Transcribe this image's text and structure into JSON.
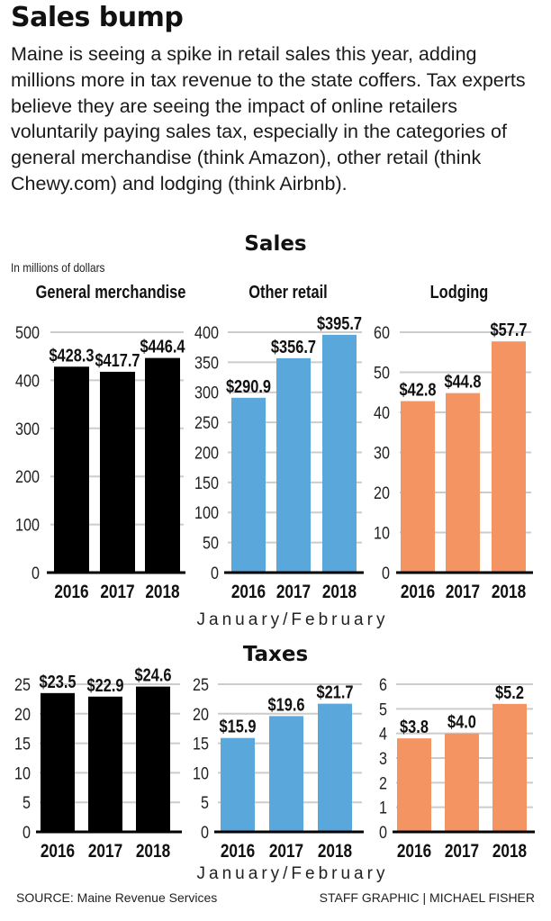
{
  "header": {
    "title": "Sales bump",
    "description": "Maine is seeing a spike in retail sales this year, adding millions more in tax revenue to the state coffers. Tax experts believe they are seeing the impact of online retailers voluntarily paying sales tax, especially in the categories of general merchandise (think Amazon), other retail (think Chewy.com) and lodging (think Airbnb)."
  },
  "sections": {
    "sales_title": "Sales",
    "taxes_title": "Taxes",
    "units": "In millions of dollars",
    "period_label": "January/February"
  },
  "footer": {
    "source": "SOURCE: Maine Revenue Services",
    "credit": "STAFF GRAPHIC | MICHAEL FISHER"
  },
  "colors": {
    "general_merchandise": "#000000",
    "other_retail": "#5aa7dc",
    "lodging": "#f39462",
    "gridline": "#cccccc",
    "axis": "#000000"
  },
  "chart_data": [
    {
      "type": "bar",
      "group": "Sales",
      "title": "General merchandise",
      "categories": [
        "2016",
        "2017",
        "2018"
      ],
      "values": [
        428.3,
        417.7,
        446.4
      ],
      "labels": [
        "$428.3",
        "$417.7",
        "$446.4"
      ],
      "yticks": [
        0,
        100,
        200,
        300,
        400,
        500
      ],
      "ylim": [
        0,
        500
      ],
      "color_key": "general_merchandise",
      "ylabel": "In millions of dollars",
      "xlabel": "",
      "grid": true
    },
    {
      "type": "bar",
      "group": "Sales",
      "title": "Other retail",
      "categories": [
        "2016",
        "2017",
        "2018"
      ],
      "values": [
        290.9,
        356.7,
        395.7
      ],
      "labels": [
        "$290.9",
        "$356.7",
        "$395.7"
      ],
      "yticks": [
        0,
        50,
        100,
        150,
        200,
        250,
        300,
        350,
        400
      ],
      "ylim": [
        0,
        400
      ],
      "color_key": "other_retail",
      "ylabel": "",
      "xlabel": "January/February",
      "grid": true
    },
    {
      "type": "bar",
      "group": "Sales",
      "title": "Lodging",
      "categories": [
        "2016",
        "2017",
        "2018"
      ],
      "values": [
        42.8,
        44.8,
        57.7
      ],
      "labels": [
        "$42.8",
        "$44.8",
        "$57.7"
      ],
      "yticks": [
        0,
        10,
        20,
        30,
        40,
        50,
        60
      ],
      "ylim": [
        0,
        60
      ],
      "color_key": "lodging",
      "ylabel": "",
      "xlabel": "",
      "grid": true
    },
    {
      "type": "bar",
      "group": "Taxes",
      "title": "General merchandise",
      "categories": [
        "2016",
        "2017",
        "2018"
      ],
      "values": [
        23.5,
        22.9,
        24.6
      ],
      "labels": [
        "$23.5",
        "$22.9",
        "$24.6"
      ],
      "yticks": [
        0,
        5,
        10,
        15,
        20,
        25
      ],
      "ylim": [
        0,
        25
      ],
      "color_key": "general_merchandise",
      "ylabel": "",
      "xlabel": "",
      "grid": true
    },
    {
      "type": "bar",
      "group": "Taxes",
      "title": "Other retail",
      "categories": [
        "2016",
        "2017",
        "2018"
      ],
      "values": [
        15.9,
        19.6,
        21.7
      ],
      "labels": [
        "$15.9",
        "$19.6",
        "$21.7"
      ],
      "yticks": [
        0,
        5,
        10,
        15,
        20,
        25
      ],
      "ylim": [
        0,
        25
      ],
      "color_key": "other_retail",
      "ylabel": "",
      "xlabel": "January/February",
      "grid": true
    },
    {
      "type": "bar",
      "group": "Taxes",
      "title": "Lodging",
      "categories": [
        "2016",
        "2017",
        "2018"
      ],
      "values": [
        3.8,
        4.0,
        5.2
      ],
      "labels": [
        "$3.8",
        "$4.0",
        "$5.2"
      ],
      "yticks": [
        0,
        1,
        2,
        3,
        4,
        5,
        6
      ],
      "ylim": [
        0,
        6
      ],
      "color_key": "lodging",
      "ylabel": "",
      "xlabel": "",
      "grid": true
    }
  ]
}
